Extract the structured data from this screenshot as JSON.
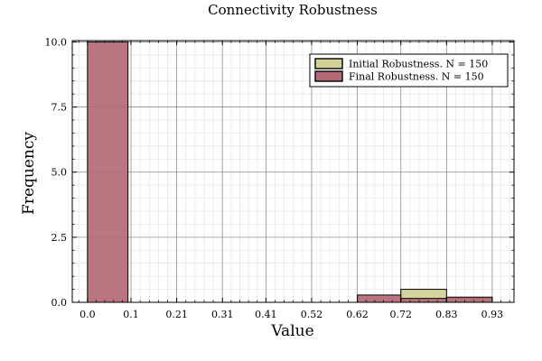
{
  "chart_data": {
    "type": "bar",
    "title": "Connectivity Robustness",
    "xlabel": "Value",
    "ylabel": "Frequency",
    "xlim": [
      -0.035,
      0.98
    ],
    "ylim": [
      0,
      10.05
    ],
    "xticks": [
      0.0,
      0.1,
      0.205,
      0.31,
      0.41,
      0.515,
      0.62,
      0.72,
      0.825,
      0.93
    ],
    "xtick_labels": [
      "0.0",
      "0.1",
      "0.21",
      "0.31",
      "0.41",
      "0.52",
      "0.62",
      "0.72",
      "0.83",
      "0.93"
    ],
    "yticks": [
      0,
      2.5,
      5.0,
      7.5,
      10.0
    ],
    "ytick_labels": [
      "0.0",
      "2.5",
      "5.0",
      "7.5",
      "10.0"
    ],
    "grid": true,
    "legend_position": "top-right",
    "series": [
      {
        "name": "Initial Robustness. N = 150",
        "color": "#d2d096",
        "bins": [
          {
            "x0": 0.72,
            "x1": 0.825,
            "value": 0.5
          },
          {
            "x0": 0.825,
            "x1": 0.93,
            "value": 0.15
          }
        ]
      },
      {
        "name": "Final Robustness. N = 150",
        "color": "#b36a76",
        "bins": [
          {
            "x0": 0.0,
            "x1": 0.093,
            "value": 10.0
          },
          {
            "x0": 0.62,
            "x1": 0.72,
            "value": 0.28
          },
          {
            "x0": 0.72,
            "x1": 0.825,
            "value": 0.15
          },
          {
            "x0": 0.825,
            "x1": 0.93,
            "value": 0.2
          }
        ]
      }
    ]
  }
}
